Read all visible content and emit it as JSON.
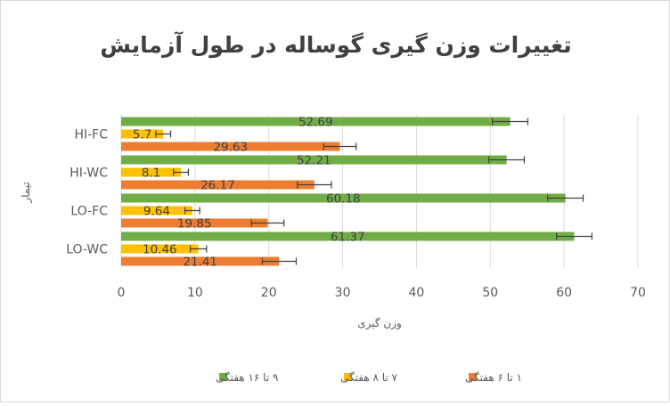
{
  "chart_data": {
    "type": "bar",
    "orientation": "horizontal",
    "title": "تغییرات وزن گیری گوساله در طول آزمایش",
    "xlabel": "وزن گیری",
    "ylabel": "تیمار",
    "categories": [
      "LO-WC",
      "LO-FC",
      "HI-WC",
      "HI-FC"
    ],
    "xlim": [
      0,
      70
    ],
    "xticks": [
      0,
      10,
      20,
      30,
      40,
      50,
      60,
      70
    ],
    "grid": "vertical",
    "legend_position": "bottom",
    "series": [
      {
        "name": "۱ تا ۶ هفتگی",
        "color": "#ed7d31",
        "values": [
          21.41,
          19.85,
          26.17,
          29.63
        ],
        "errors": [
          2.3,
          2.2,
          2.3,
          2.2
        ]
      },
      {
        "name": "۷ تا ۸ هفتگی",
        "color": "#ffc000",
        "values": [
          10.46,
          9.64,
          8.1,
          5.7
        ],
        "errors": [
          1.1,
          1.0,
          1.0,
          1.0
        ]
      },
      {
        "name": "۹ تا ۱۶ هفتگی",
        "color": "#70ad47",
        "values": [
          61.37,
          60.18,
          52.21,
          52.69
        ],
        "errors": [
          2.4,
          2.4,
          2.4,
          2.4
        ]
      }
    ]
  }
}
